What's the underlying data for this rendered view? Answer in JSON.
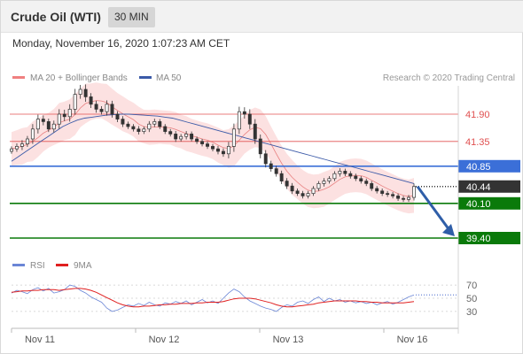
{
  "header": {
    "title": "Crude Oil (WTI)",
    "interval": "30 MIN"
  },
  "datetime": "Monday, November 16, 2020 1:07:23 AM CET",
  "colors": {
    "up": "#ffffff",
    "down": "#333333",
    "ma50": "#3b5aa8",
    "bollinger_line": "#e88080",
    "bollinger_fill": "#fcdcdc",
    "resistance": "#e05050",
    "pivot": "#3b6fd8",
    "support": "#0a7a0a",
    "price_tag": "#333333",
    "rsi": "#6b86d6",
    "rsi_ma": "#e02020",
    "arrow": "#2f5ea8"
  },
  "chart_data": [
    {
      "type": "candlestick",
      "title": "Crude Oil (WTI)",
      "legend": [
        {
          "label": "MA 20 + Bollinger Bands",
          "color": "#f08080"
        },
        {
          "label": "MA 50",
          "color": "#3b5aa8"
        }
      ],
      "credit": "Research © 2020 Trading Central",
      "x_ticks": [
        "Nov 11",
        "Nov 12",
        "Nov 13",
        "Nov 16"
      ],
      "ylim": [
        39.15,
        42.4
      ],
      "levels": [
        {
          "label": "41.90",
          "value": 41.9,
          "kind": "resistance"
        },
        {
          "label": "41.35",
          "value": 41.35,
          "kind": "resistance"
        },
        {
          "label": "40.85",
          "value": 40.85,
          "kind": "pivot"
        },
        {
          "label": "40.10",
          "value": 40.1,
          "kind": "support"
        },
        {
          "label": "39.40",
          "value": 39.4,
          "kind": "support"
        }
      ],
      "last_price": {
        "label": "40.44",
        "value": 40.44
      },
      "close": [
        41.2,
        41.25,
        41.3,
        41.4,
        41.6,
        41.8,
        41.75,
        41.6,
        41.7,
        41.9,
        41.85,
        42.0,
        42.3,
        42.4,
        42.25,
        42.1,
        42.0,
        41.95,
        42.1,
        41.9,
        41.8,
        41.7,
        41.65,
        41.6,
        41.55,
        41.6,
        41.7,
        41.75,
        41.65,
        41.55,
        41.5,
        41.4,
        41.45,
        41.5,
        41.4,
        41.35,
        41.3,
        41.25,
        41.2,
        41.15,
        41.1,
        41.25,
        41.6,
        41.95,
        41.9,
        41.7,
        41.4,
        41.1,
        40.9,
        40.8,
        40.7,
        40.55,
        40.45,
        40.35,
        40.3,
        40.25,
        40.3,
        40.4,
        40.5,
        40.55,
        40.6,
        40.7,
        40.75,
        40.7,
        40.65,
        40.6,
        40.55,
        40.5,
        40.4,
        40.35,
        40.3,
        40.28,
        40.25,
        40.2,
        40.18,
        40.22,
        40.44
      ],
      "volatility": [
        0.1,
        0.12,
        0.15,
        0.12,
        0.2,
        0.18,
        0.15,
        0.12,
        0.14,
        0.2,
        0.18,
        0.2,
        0.22,
        0.18,
        0.2,
        0.15,
        0.14,
        0.12,
        0.16,
        0.14,
        0.12,
        0.12,
        0.1,
        0.1,
        0.12,
        0.1,
        0.12,
        0.12,
        0.1,
        0.1,
        0.1,
        0.12,
        0.1,
        0.12,
        0.1,
        0.1,
        0.1,
        0.1,
        0.1,
        0.12,
        0.12,
        0.18,
        0.22,
        0.2,
        0.18,
        0.2,
        0.2,
        0.18,
        0.15,
        0.12,
        0.12,
        0.12,
        0.12,
        0.12,
        0.1,
        0.1,
        0.1,
        0.1,
        0.1,
        0.12,
        0.1,
        0.1,
        0.12,
        0.1,
        0.1,
        0.1,
        0.1,
        0.1,
        0.1,
        0.1,
        0.1,
        0.1,
        0.1,
        0.1,
        0.1,
        0.1,
        0.12
      ],
      "ma50": [
        40.95,
        41.05,
        41.15,
        41.25,
        41.35,
        41.45,
        41.55,
        41.65,
        41.72,
        41.78,
        41.82,
        41.84,
        41.86,
        41.88,
        41.89,
        41.9,
        41.9,
        41.89,
        41.88,
        41.87,
        41.86,
        41.84,
        41.82,
        41.78,
        41.74,
        41.7,
        41.66,
        41.62,
        41.58,
        41.54,
        41.5,
        41.46,
        41.42,
        41.38,
        41.34,
        41.3,
        41.26,
        41.22,
        41.18,
        41.14,
        41.1,
        41.06,
        41.02,
        40.98,
        40.94,
        40.9,
        40.86,
        40.82,
        40.78,
        40.74,
        40.7,
        40.66,
        40.62,
        40.58,
        40.54,
        40.5
      ],
      "arrow_target": 39.4
    },
    {
      "type": "line",
      "title": "RSI",
      "legend": [
        {
          "label": "RSI",
          "color": "#6b86d6"
        },
        {
          "label": "9MA",
          "color": "#e02020"
        }
      ],
      "y_ticks": [
        "70",
        "50",
        "30"
      ],
      "ylim": [
        15,
        85
      ],
      "series": [
        {
          "name": "RSI",
          "values": [
            58,
            62,
            60,
            57,
            63,
            66,
            61,
            65,
            58,
            60,
            63,
            70,
            68,
            62,
            58,
            52,
            48,
            44,
            35,
            30,
            32,
            36,
            40,
            38,
            42,
            39,
            44,
            40,
            38,
            43,
            41,
            45,
            42,
            46,
            40,
            44,
            48,
            43,
            46,
            42,
            50,
            58,
            64,
            60,
            52,
            46,
            42,
            38,
            35,
            33,
            30,
            36,
            40,
            38,
            44,
            46,
            42,
            48,
            52,
            45,
            50,
            46,
            48,
            44,
            46,
            43,
            45,
            42,
            44,
            40,
            43,
            45,
            41,
            44,
            48,
            52,
            55
          ]
        },
        {
          "name": "9MA",
          "values": [
            59,
            60,
            61,
            61,
            62,
            62,
            63,
            63,
            63,
            62,
            63,
            64,
            65,
            65,
            64,
            62,
            59,
            55,
            51,
            47,
            43,
            40,
            38,
            37,
            37,
            38,
            38,
            39,
            40,
            40,
            41,
            41,
            42,
            42,
            42,
            43,
            43,
            44,
            44,
            44,
            45,
            47,
            49,
            50,
            50,
            50,
            49,
            47,
            45,
            43,
            40,
            38,
            37,
            37,
            38,
            39,
            40,
            41,
            43,
            44,
            45,
            46,
            46,
            46,
            46,
            46,
            45,
            45,
            44,
            44,
            43,
            43,
            43,
            43,
            43,
            44,
            45
          ]
        }
      ]
    }
  ]
}
